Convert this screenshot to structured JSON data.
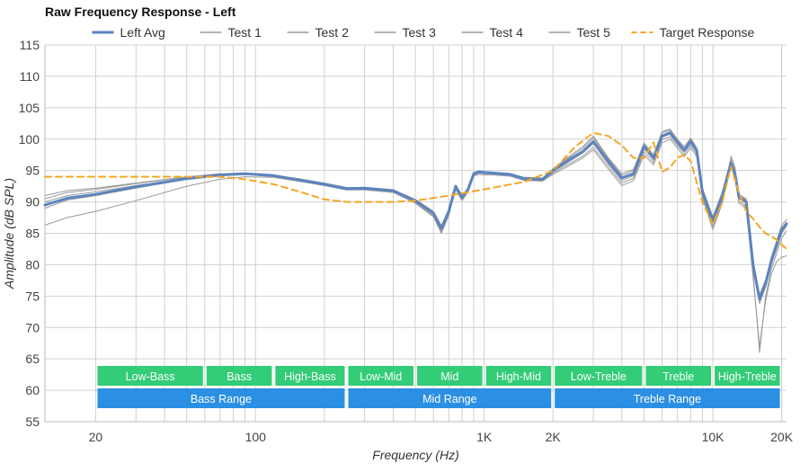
{
  "chart_data": {
    "type": "line",
    "title": "Raw Frequency Response - Left",
    "xlabel": "Frequency (Hz)",
    "ylabel": "Amplitude (dB SPL)",
    "x_scale": "log",
    "xlim": [
      12,
      21000
    ],
    "ylim": [
      55,
      115
    ],
    "grid": true,
    "legend_position": "top",
    "x_tick_labels": [
      {
        "value": 20,
        "label": "20"
      },
      {
        "value": 100,
        "label": "100"
      },
      {
        "value": 1000,
        "label": "1K"
      },
      {
        "value": 2000,
        "label": "2K"
      },
      {
        "value": 10000,
        "label": "10K"
      },
      {
        "value": 20000,
        "label": "20K"
      }
    ],
    "y_ticks": [
      55,
      60,
      65,
      70,
      75,
      80,
      85,
      90,
      95,
      100,
      105,
      110,
      115
    ],
    "bands": [
      {
        "label": "Low-Bass",
        "x0": 20,
        "x1": 60,
        "row": 1
      },
      {
        "label": "Bass",
        "x0": 60,
        "x1": 120,
        "row": 1
      },
      {
        "label": "High-Bass",
        "x0": 120,
        "x1": 250,
        "row": 1
      },
      {
        "label": "Low-Mid",
        "x0": 250,
        "x1": 500,
        "row": 1
      },
      {
        "label": "Mid",
        "x0": 500,
        "x1": 1000,
        "row": 1
      },
      {
        "label": "High-Mid",
        "x0": 1000,
        "x1": 2000,
        "row": 1
      },
      {
        "label": "Low-Treble",
        "x0": 2000,
        "x1": 5000,
        "row": 1
      },
      {
        "label": "Treble",
        "x0": 5000,
        "x1": 10000,
        "row": 1
      },
      {
        "label": "High-Treble",
        "x0": 10000,
        "x1": 20000,
        "row": 1
      },
      {
        "label": "Bass Range",
        "x0": 20,
        "x1": 250,
        "row": 2
      },
      {
        "label": "Mid Range",
        "x0": 250,
        "x1": 2000,
        "row": 2
      },
      {
        "label": "Treble Range",
        "x0": 2000,
        "x1": 20000,
        "row": 2
      }
    ],
    "band_colors": {
      "row1": "#33cc77",
      "row2": "#2b8fe3"
    },
    "series": [
      {
        "name": "Left Avg",
        "color": "#5b84bf",
        "style": "solid",
        "width": 3,
        "x": [
          12,
          15,
          20,
          30,
          50,
          70,
          90,
          120,
          160,
          200,
          250,
          300,
          400,
          500,
          600,
          650,
          700,
          750,
          800,
          850,
          900,
          950,
          1000,
          1100,
          1300,
          1500,
          1800,
          2000,
          2300,
          2700,
          3000,
          3500,
          4000,
          4500,
          5000,
          5500,
          6000,
          6500,
          7000,
          7500,
          8000,
          8500,
          9000,
          10000,
          11000,
          12000,
          12500,
          13000,
          14000,
          15000,
          16000,
          17000,
          18000,
          19000,
          20000,
          21000
        ],
        "y": [
          89.5,
          90.6,
          91.2,
          92.4,
          93.7,
          94.3,
          94.5,
          94.2,
          93.4,
          92.8,
          92.1,
          92.2,
          91.8,
          90.2,
          88.2,
          85.8,
          88.5,
          92.5,
          90.7,
          92.0,
          94.5,
          94.8,
          94.7,
          94.6,
          94.4,
          93.7,
          93.6,
          95.0,
          96.5,
          98.0,
          99.6,
          96.4,
          93.8,
          94.5,
          98.8,
          97.0,
          100.5,
          101.0,
          99.5,
          98.2,
          99.6,
          98.2,
          91.6,
          87.0,
          91.0,
          96.2,
          94.5,
          90.8,
          90.0,
          80.0,
          74.5,
          77.0,
          80.5,
          83.0,
          85.5,
          86.5
        ]
      },
      {
        "name": "Test 1",
        "color": "#9a9a9a",
        "style": "solid",
        "width": 1,
        "x": [
          12,
          15,
          20,
          30,
          50,
          70,
          90,
          120,
          160,
          200,
          250,
          300,
          400,
          500,
          600,
          650,
          700,
          750,
          800,
          850,
          900,
          950,
          1000,
          1100,
          1300,
          1500,
          1800,
          2000,
          2300,
          2700,
          3000,
          3500,
          4000,
          4500,
          5000,
          5500,
          6000,
          6500,
          7000,
          7500,
          8000,
          8500,
          9000,
          10000,
          11000,
          12000,
          12500,
          13000,
          14000,
          15000,
          16000,
          17000,
          18000,
          19000,
          20000,
          21000
        ],
        "y": [
          91.0,
          91.8,
          92.2,
          93.0,
          94.0,
          94.5,
          94.6,
          94.3,
          93.6,
          93.0,
          92.3,
          92.3,
          91.9,
          90.4,
          88.5,
          86.2,
          88.8,
          92.7,
          91.0,
          92.2,
          94.7,
          94.9,
          94.8,
          94.7,
          94.5,
          93.9,
          93.8,
          95.3,
          97.0,
          98.8,
          100.5,
          97.0,
          94.5,
          95.2,
          99.4,
          97.5,
          101.2,
          101.6,
          100.0,
          98.8,
          100.2,
          98.6,
          92.2,
          87.6,
          91.6,
          96.8,
          95.0,
          91.2,
          90.5,
          80.5,
          75.2,
          77.6,
          81.2,
          83.8,
          86.3,
          87.2
        ]
      },
      {
        "name": "Test 2",
        "color": "#9a9a9a",
        "style": "solid",
        "width": 1,
        "x": [
          12,
          15,
          20,
          30,
          50,
          70,
          90,
          120,
          160,
          200,
          250,
          300,
          400,
          500,
          600,
          650,
          700,
          750,
          800,
          850,
          900,
          950,
          1000,
          1100,
          1300,
          1500,
          1800,
          2000,
          2300,
          2700,
          3000,
          3500,
          4000,
          4500,
          5000,
          5500,
          6000,
          6500,
          7000,
          7500,
          8000,
          8500,
          9000,
          10000,
          11000,
          12000,
          12500,
          13000,
          14000,
          15000,
          16000,
          17000,
          18000,
          19000,
          20000,
          21000
        ],
        "y": [
          90.5,
          91.5,
          92.0,
          92.9,
          93.9,
          94.4,
          94.6,
          94.2,
          93.5,
          92.9,
          92.2,
          92.2,
          91.8,
          90.3,
          88.3,
          85.9,
          88.6,
          92.6,
          90.9,
          92.1,
          94.6,
          94.8,
          94.7,
          94.6,
          94.4,
          93.8,
          93.7,
          95.2,
          96.8,
          98.5,
          100.2,
          96.8,
          94.2,
          95.0,
          99.2,
          97.3,
          101.0,
          101.4,
          99.8,
          98.5,
          100.0,
          98.4,
          92.0,
          87.3,
          91.3,
          96.5,
          94.8,
          91.0,
          90.3,
          80.2,
          74.8,
          77.3,
          80.8,
          83.4,
          85.9,
          86.8
        ]
      },
      {
        "name": "Test 3",
        "color": "#9a9a9a",
        "style": "solid",
        "width": 1,
        "x": [
          12,
          15,
          20,
          30,
          50,
          70,
          90,
          120,
          160,
          200,
          250,
          300,
          400,
          500,
          600,
          650,
          700,
          750,
          800,
          850,
          900,
          950,
          1000,
          1100,
          1300,
          1500,
          1800,
          2000,
          2300,
          2700,
          3000,
          3500,
          4000,
          4500,
          5000,
          5500,
          6000,
          6500,
          7000,
          7500,
          8000,
          8500,
          9000,
          10000,
          11000,
          12000,
          12500,
          13000,
          14000,
          15000,
          16000,
          17000,
          18000,
          19000,
          20000,
          21000
        ],
        "y": [
          90.0,
          91.0,
          91.6,
          92.6,
          93.7,
          94.3,
          94.5,
          94.1,
          93.4,
          92.8,
          92.1,
          92.1,
          91.7,
          90.1,
          88.0,
          85.5,
          88.3,
          92.4,
          90.6,
          91.9,
          94.4,
          94.7,
          94.6,
          94.5,
          94.3,
          93.6,
          93.5,
          94.8,
          96.2,
          97.8,
          99.3,
          96.0,
          93.4,
          94.2,
          98.5,
          96.7,
          100.3,
          100.8,
          99.3,
          98.0,
          99.4,
          98.0,
          91.4,
          86.6,
          90.7,
          96.0,
          94.2,
          90.5,
          89.8,
          79.5,
          73.8,
          76.5,
          80.0,
          82.6,
          85.0,
          86.1
        ]
      },
      {
        "name": "Test 4",
        "color": "#9a9a9a",
        "style": "solid",
        "width": 1,
        "x": [
          12,
          15,
          20,
          30,
          50,
          70,
          90,
          120,
          160,
          200,
          250,
          300,
          400,
          500,
          600,
          650,
          700,
          750,
          800,
          850,
          900,
          950,
          1000,
          1100,
          1300,
          1500,
          1800,
          2000,
          2300,
          2700,
          3000,
          3500,
          4000,
          4500,
          5000,
          5500,
          6000,
          6500,
          7000,
          7500,
          8000,
          8500,
          9000,
          10000,
          11000,
          12000,
          12500,
          13000,
          14000,
          15000,
          16000,
          17000,
          18000,
          19000,
          20000,
          21000
        ],
        "y": [
          89.0,
          90.3,
          91.0,
          92.2,
          93.6,
          94.2,
          94.4,
          94.0,
          93.3,
          92.7,
          92.0,
          92.0,
          91.6,
          89.9,
          87.8,
          85.2,
          88.0,
          92.2,
          90.4,
          91.8,
          94.3,
          94.6,
          94.5,
          94.4,
          94.2,
          93.5,
          93.4,
          94.6,
          95.9,
          97.3,
          98.7,
          95.6,
          93.0,
          93.8,
          98.0,
          96.3,
          99.9,
          100.4,
          99.0,
          97.6,
          99.0,
          97.6,
          91.0,
          86.1,
          90.2,
          95.6,
          93.8,
          90.1,
          89.4,
          78.8,
          66.0,
          75.0,
          79.2,
          81.8,
          84.2,
          85.4
        ]
      },
      {
        "name": "Test 5",
        "color": "#9a9a9a",
        "style": "solid",
        "width": 1,
        "x": [
          12,
          15,
          20,
          30,
          50,
          70,
          90,
          120,
          160,
          200,
          250,
          300,
          400,
          500,
          600,
          650,
          700,
          750,
          800,
          850,
          900,
          950,
          1000,
          1100,
          1300,
          1500,
          1800,
          2000,
          2300,
          2700,
          3000,
          3500,
          4000,
          4500,
          5000,
          5500,
          6000,
          6500,
          7000,
          7500,
          8000,
          8500,
          9000,
          10000,
          11000,
          12000,
          12500,
          13000,
          14000,
          15000,
          16000,
          17000,
          18000,
          19000,
          20000,
          21000
        ],
        "y": [
          86.3,
          87.5,
          88.5,
          90.2,
          92.5,
          93.6,
          94.0,
          93.9,
          93.2,
          92.6,
          91.9,
          91.9,
          91.5,
          89.8,
          87.6,
          85.0,
          87.8,
          92.0,
          90.2,
          91.6,
          94.1,
          94.4,
          94.3,
          94.3,
          94.1,
          93.4,
          93.3,
          94.4,
          95.6,
          97.0,
          98.3,
          95.2,
          92.6,
          93.4,
          97.5,
          95.9,
          99.4,
          100.0,
          98.6,
          97.2,
          98.6,
          97.2,
          90.6,
          85.6,
          89.8,
          97.3,
          95.5,
          89.8,
          89.0,
          78.0,
          67.0,
          74.2,
          78.5,
          80.5,
          81.2,
          81.4
        ]
      },
      {
        "name": "Target Response",
        "color": "#f5a623",
        "style": "dashed",
        "width": 2,
        "x": [
          12,
          20,
          40,
          70,
          90,
          120,
          160,
          200,
          250,
          300,
          400,
          500,
          700,
          1000,
          1500,
          2000,
          2500,
          3000,
          3500,
          4000,
          4500,
          5000,
          5500,
          6000,
          6500,
          7000,
          7500,
          8000,
          9000,
          10000,
          11000,
          12000,
          13000,
          14000,
          15000,
          16000,
          17000,
          18000,
          19000,
          20000,
          21000
        ],
        "y": [
          94.0,
          94.0,
          94.0,
          94.0,
          93.6,
          92.8,
          91.5,
          90.4,
          90.0,
          90.0,
          90.0,
          90.2,
          91.0,
          92.0,
          93.2,
          95.0,
          98.8,
          101.0,
          100.5,
          99.0,
          97.0,
          97.0,
          99.5,
          94.8,
          95.5,
          97.0,
          97.5,
          96.5,
          90.0,
          86.5,
          90.0,
          95.6,
          91.5,
          88.5,
          87.3,
          86.0,
          85.0,
          84.5,
          84.0,
          83.2,
          82.5
        ]
      }
    ]
  }
}
